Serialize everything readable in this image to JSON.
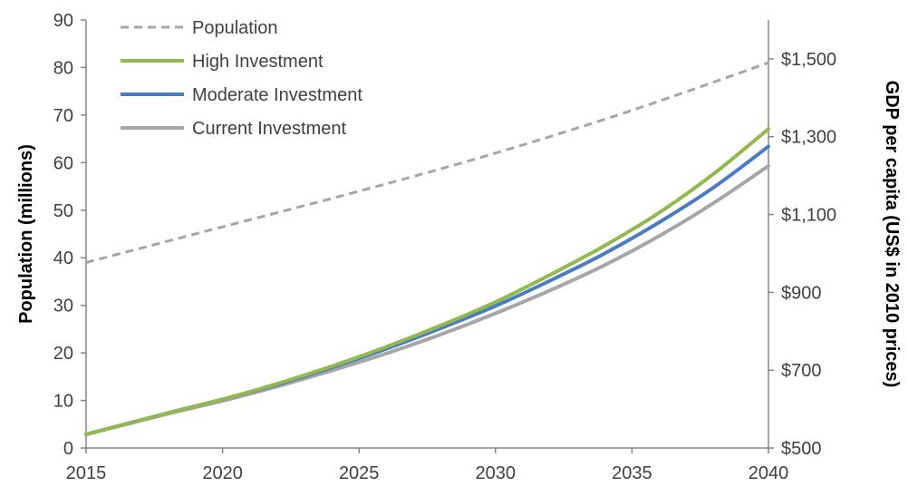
{
  "chart_data": {
    "type": "line",
    "title": "",
    "xlabel": "",
    "ylabel": "Population (millions)",
    "y2label": "GDP per capita (US$ in 2010 prices)",
    "x": [
      2015,
      2020,
      2025,
      2030,
      2035,
      2040
    ],
    "xlim": [
      2015,
      2040
    ],
    "ylim": [
      0,
      90
    ],
    "y2lim": [
      500,
      1600
    ],
    "x_ticks": [
      "2015",
      "2020",
      "2025",
      "2030",
      "2035",
      "2040"
    ],
    "y_ticks": [
      "0",
      "10",
      "20",
      "30",
      "40",
      "50",
      "60",
      "70",
      "80",
      "90"
    ],
    "y2_ticks": [
      "$500",
      "$700",
      "$900",
      "$1,100",
      "$1,300",
      "$1,500"
    ],
    "grid": false,
    "legend_position": "top-left",
    "series": [
      {
        "name": "Population",
        "axis": "left",
        "color": "#A6A6A6",
        "style": "dashed",
        "x": [
          2015,
          2020,
          2025,
          2030,
          2035,
          2040
        ],
        "values": [
          39,
          46.5,
          54,
          62,
          71,
          81
        ]
      },
      {
        "name": "High Investment",
        "axis": "right",
        "color": "#92B84F",
        "style": "solid",
        "x": [
          2015,
          2018,
          2020,
          2022,
          2024,
          2026,
          2028,
          2030,
          2032,
          2034,
          2036,
          2038,
          2040
        ],
        "values": [
          535,
          590,
          625,
          665,
          710,
          760,
          815,
          875,
          945,
          1020,
          1105,
          1205,
          1320
        ]
      },
      {
        "name": "Moderate Investment",
        "axis": "right",
        "color": "#4A7CC1",
        "style": "solid",
        "x": [
          2015,
          2018,
          2020,
          2022,
          2024,
          2026,
          2028,
          2030,
          2032,
          2034,
          2036,
          2038,
          2040
        ],
        "values": [
          535,
          590,
          625,
          663,
          707,
          755,
          808,
          865,
          930,
          1000,
          1080,
          1170,
          1275
        ]
      },
      {
        "name": "Current Investment",
        "axis": "right",
        "color": "#A6A6A6",
        "style": "solid",
        "x": [
          2015,
          2018,
          2020,
          2022,
          2024,
          2026,
          2028,
          2030,
          2032,
          2034,
          2036,
          2038,
          2040
        ],
        "values": [
          535,
          588,
          621,
          658,
          699,
          743,
          792,
          846,
          905,
          970,
          1045,
          1130,
          1225
        ]
      }
    ]
  }
}
